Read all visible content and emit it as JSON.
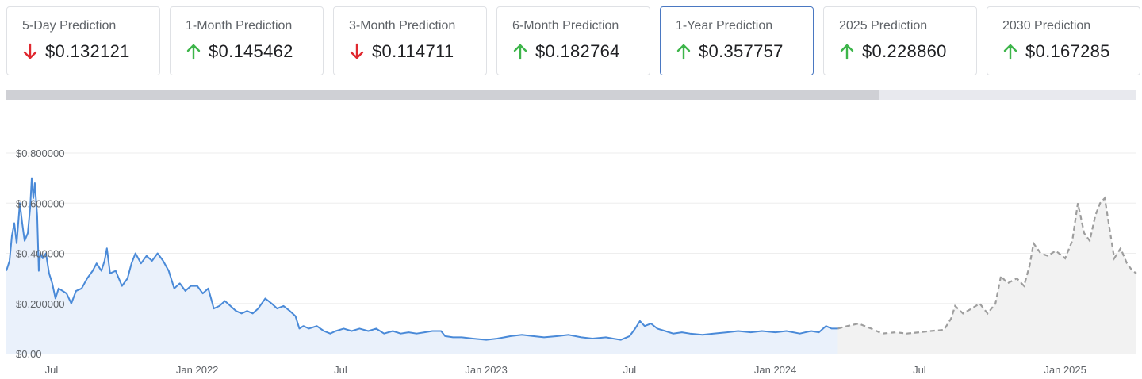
{
  "prediction_cards": [
    {
      "label": "5-Day Prediction",
      "value": "$0.132121",
      "direction": "down",
      "active": false
    },
    {
      "label": "1-Month Prediction",
      "value": "$0.145462",
      "direction": "up",
      "active": false
    },
    {
      "label": "3-Month Prediction",
      "value": "$0.114711",
      "direction": "down",
      "active": false
    },
    {
      "label": "6-Month Prediction",
      "value": "$0.182764",
      "direction": "up",
      "active": false
    },
    {
      "label": "1-Year Prediction",
      "value": "$0.357757",
      "direction": "up",
      "active": true
    },
    {
      "label": "2025 Prediction",
      "value": "$0.228860",
      "direction": "up",
      "active": false
    },
    {
      "label": "2030 Prediction",
      "value": "$0.167285",
      "direction": "up",
      "active": false
    }
  ],
  "colors": {
    "up_arrow": "#3db54a",
    "down_arrow": "#e0282f",
    "historical_line": "#4a8ad8",
    "historical_fill": "#eaf1fb",
    "forecast_line": "#9e9e9e",
    "forecast_fill": "#f2f2f2",
    "grid": "#eeeeee"
  },
  "chart_data": {
    "type": "line",
    "y_tick_labels": [
      "$0.00",
      "$0.200000",
      "$0.400000",
      "$0.600000",
      "$0.800000"
    ],
    "y_ticks": [
      0,
      0.2,
      0.4,
      0.6,
      0.8
    ],
    "ylim": [
      0,
      0.8
    ],
    "xlim": [
      "2021-05-05",
      "2025-04-01"
    ],
    "x_ticks": [
      {
        "date": "2021-07-01",
        "label": "Jul"
      },
      {
        "date": "2022-01-01",
        "label": "Jan 2022"
      },
      {
        "date": "2022-07-01",
        "label": "Jul"
      },
      {
        "date": "2023-01-01",
        "label": "Jan 2023"
      },
      {
        "date": "2023-07-01",
        "label": "Jul"
      },
      {
        "date": "2024-01-01",
        "label": "Jan 2024"
      },
      {
        "date": "2024-07-01",
        "label": "Jul"
      },
      {
        "date": "2025-01-01",
        "label": "Jan 2025"
      }
    ],
    "grid": true,
    "series": [
      {
        "style": "solid",
        "points": [
          [
            "2021-05-05",
            0.33
          ],
          [
            "2021-05-09",
            0.37
          ],
          [
            "2021-05-12",
            0.47
          ],
          [
            "2021-05-15",
            0.52
          ],
          [
            "2021-05-18",
            0.44
          ],
          [
            "2021-05-22",
            0.6
          ],
          [
            "2021-05-25",
            0.52
          ],
          [
            "2021-05-28",
            0.45
          ],
          [
            "2021-06-01",
            0.48
          ],
          [
            "2021-06-04",
            0.58
          ],
          [
            "2021-06-06",
            0.7
          ],
          [
            "2021-06-08",
            0.62
          ],
          [
            "2021-06-10",
            0.68
          ],
          [
            "2021-06-13",
            0.55
          ],
          [
            "2021-06-15",
            0.33
          ],
          [
            "2021-06-17",
            0.4
          ],
          [
            "2021-06-20",
            0.38
          ],
          [
            "2021-06-24",
            0.4
          ],
          [
            "2021-06-28",
            0.32
          ],
          [
            "2021-07-02",
            0.28
          ],
          [
            "2021-07-06",
            0.22
          ],
          [
            "2021-07-10",
            0.26
          ],
          [
            "2021-07-15",
            0.25
          ],
          [
            "2021-07-20",
            0.24
          ],
          [
            "2021-07-26",
            0.2
          ],
          [
            "2021-08-01",
            0.25
          ],
          [
            "2021-08-08",
            0.26
          ],
          [
            "2021-08-15",
            0.3
          ],
          [
            "2021-08-22",
            0.33
          ],
          [
            "2021-08-27",
            0.36
          ],
          [
            "2021-09-02",
            0.33
          ],
          [
            "2021-09-06",
            0.37
          ],
          [
            "2021-09-09",
            0.42
          ],
          [
            "2021-09-13",
            0.32
          ],
          [
            "2021-09-20",
            0.33
          ],
          [
            "2021-09-28",
            0.27
          ],
          [
            "2021-10-05",
            0.3
          ],
          [
            "2021-10-10",
            0.36
          ],
          [
            "2021-10-15",
            0.4
          ],
          [
            "2021-10-22",
            0.36
          ],
          [
            "2021-10-29",
            0.39
          ],
          [
            "2021-11-05",
            0.37
          ],
          [
            "2021-11-12",
            0.4
          ],
          [
            "2021-11-19",
            0.37
          ],
          [
            "2021-11-26",
            0.33
          ],
          [
            "2021-12-03",
            0.26
          ],
          [
            "2021-12-10",
            0.28
          ],
          [
            "2021-12-17",
            0.25
          ],
          [
            "2021-12-24",
            0.27
          ],
          [
            "2022-01-01",
            0.27
          ],
          [
            "2022-01-08",
            0.24
          ],
          [
            "2022-01-15",
            0.26
          ],
          [
            "2022-01-22",
            0.18
          ],
          [
            "2022-01-29",
            0.19
          ],
          [
            "2022-02-05",
            0.21
          ],
          [
            "2022-02-12",
            0.19
          ],
          [
            "2022-02-19",
            0.17
          ],
          [
            "2022-02-26",
            0.16
          ],
          [
            "2022-03-05",
            0.17
          ],
          [
            "2022-03-12",
            0.16
          ],
          [
            "2022-03-19",
            0.18
          ],
          [
            "2022-03-28",
            0.22
          ],
          [
            "2022-04-05",
            0.2
          ],
          [
            "2022-04-12",
            0.18
          ],
          [
            "2022-04-20",
            0.19
          ],
          [
            "2022-04-28",
            0.17
          ],
          [
            "2022-05-05",
            0.15
          ],
          [
            "2022-05-10",
            0.1
          ],
          [
            "2022-05-15",
            0.11
          ],
          [
            "2022-05-22",
            0.1
          ],
          [
            "2022-06-01",
            0.11
          ],
          [
            "2022-06-10",
            0.09
          ],
          [
            "2022-06-18",
            0.08
          ],
          [
            "2022-06-25",
            0.09
          ],
          [
            "2022-07-05",
            0.1
          ],
          [
            "2022-07-15",
            0.09
          ],
          [
            "2022-07-25",
            0.1
          ],
          [
            "2022-08-05",
            0.09
          ],
          [
            "2022-08-15",
            0.1
          ],
          [
            "2022-08-25",
            0.08
          ],
          [
            "2022-09-05",
            0.09
          ],
          [
            "2022-09-15",
            0.08
          ],
          [
            "2022-09-25",
            0.085
          ],
          [
            "2022-10-05",
            0.08
          ],
          [
            "2022-10-15",
            0.085
          ],
          [
            "2022-10-25",
            0.09
          ],
          [
            "2022-11-05",
            0.09
          ],
          [
            "2022-11-10",
            0.07
          ],
          [
            "2022-11-20",
            0.065
          ],
          [
            "2022-12-01",
            0.065
          ],
          [
            "2022-12-15",
            0.06
          ],
          [
            "2023-01-01",
            0.055
          ],
          [
            "2023-01-15",
            0.06
          ],
          [
            "2023-02-01",
            0.07
          ],
          [
            "2023-02-15",
            0.075
          ],
          [
            "2023-03-01",
            0.07
          ],
          [
            "2023-03-15",
            0.065
          ],
          [
            "2023-04-01",
            0.07
          ],
          [
            "2023-04-15",
            0.075
          ],
          [
            "2023-05-01",
            0.065
          ],
          [
            "2023-05-15",
            0.06
          ],
          [
            "2023-06-01",
            0.065
          ],
          [
            "2023-06-10",
            0.06
          ],
          [
            "2023-06-20",
            0.055
          ],
          [
            "2023-07-01",
            0.07
          ],
          [
            "2023-07-08",
            0.1
          ],
          [
            "2023-07-14",
            0.13
          ],
          [
            "2023-07-20",
            0.11
          ],
          [
            "2023-07-28",
            0.12
          ],
          [
            "2023-08-05",
            0.1
          ],
          [
            "2023-08-15",
            0.09
          ],
          [
            "2023-08-25",
            0.08
          ],
          [
            "2023-09-05",
            0.085
          ],
          [
            "2023-09-15",
            0.08
          ],
          [
            "2023-10-01",
            0.075
          ],
          [
            "2023-10-15",
            0.08
          ],
          [
            "2023-11-01",
            0.085
          ],
          [
            "2023-11-15",
            0.09
          ],
          [
            "2023-12-01",
            0.085
          ],
          [
            "2023-12-15",
            0.09
          ],
          [
            "2024-01-01",
            0.085
          ],
          [
            "2024-01-15",
            0.09
          ],
          [
            "2024-02-01",
            0.08
          ],
          [
            "2024-02-15",
            0.09
          ],
          [
            "2024-02-25",
            0.085
          ],
          [
            "2024-03-05",
            0.11
          ],
          [
            "2024-03-12",
            0.1
          ],
          [
            "2024-03-20",
            0.1
          ]
        ]
      },
      {
        "style": "dashed",
        "points": [
          [
            "2024-03-20",
            0.1
          ],
          [
            "2024-04-01",
            0.11
          ],
          [
            "2024-04-15",
            0.12
          ],
          [
            "2024-05-01",
            0.1
          ],
          [
            "2024-05-15",
            0.08
          ],
          [
            "2024-06-01",
            0.085
          ],
          [
            "2024-06-15",
            0.08
          ],
          [
            "2024-07-01",
            0.085
          ],
          [
            "2024-07-15",
            0.09
          ],
          [
            "2024-08-01",
            0.095
          ],
          [
            "2024-08-10",
            0.14
          ],
          [
            "2024-08-15",
            0.19
          ],
          [
            "2024-08-25",
            0.16
          ],
          [
            "2024-09-05",
            0.18
          ],
          [
            "2024-09-15",
            0.2
          ],
          [
            "2024-09-25",
            0.16
          ],
          [
            "2024-10-05",
            0.2
          ],
          [
            "2024-10-12",
            0.31
          ],
          [
            "2024-10-20",
            0.28
          ],
          [
            "2024-11-01",
            0.3
          ],
          [
            "2024-11-10",
            0.27
          ],
          [
            "2024-11-17",
            0.35
          ],
          [
            "2024-11-22",
            0.44
          ],
          [
            "2024-12-01",
            0.4
          ],
          [
            "2024-12-10",
            0.39
          ],
          [
            "2024-12-20",
            0.41
          ],
          [
            "2025-01-01",
            0.38
          ],
          [
            "2025-01-10",
            0.45
          ],
          [
            "2025-01-17",
            0.6
          ],
          [
            "2025-01-25",
            0.48
          ],
          [
            "2025-02-01",
            0.45
          ],
          [
            "2025-02-08",
            0.55
          ],
          [
            "2025-02-14",
            0.6
          ],
          [
            "2025-02-20",
            0.62
          ],
          [
            "2025-02-26",
            0.5
          ],
          [
            "2025-03-04",
            0.38
          ],
          [
            "2025-03-12",
            0.42
          ],
          [
            "2025-03-20",
            0.36
          ],
          [
            "2025-03-27",
            0.33
          ],
          [
            "2025-04-01",
            0.32
          ]
        ]
      }
    ]
  }
}
